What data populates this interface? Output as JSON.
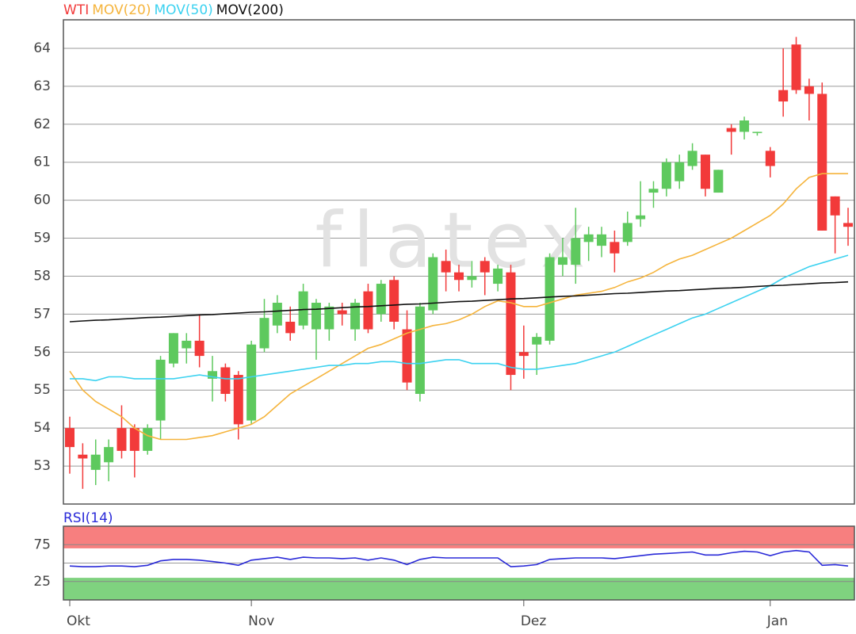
{
  "chart_data": [
    {
      "type": "candlestick",
      "watermark": "flatex",
      "categories": [
        "Okt",
        null,
        null,
        null,
        null,
        null,
        null,
        null,
        null,
        null,
        null,
        null,
        null,
        null,
        "Nov",
        null,
        null,
        null,
        null,
        null,
        null,
        null,
        null,
        null,
        null,
        null,
        null,
        null,
        null,
        null,
        null,
        null,
        null,
        null,
        null,
        "Dez",
        null,
        null,
        null,
        null,
        null,
        null,
        null,
        null,
        null,
        null,
        null,
        null,
        null,
        null,
        null,
        null,
        null,
        null,
        "Jan",
        null,
        null,
        null,
        null,
        null,
        null
      ],
      "ylim": [
        52,
        64.75
      ],
      "yticks": [
        53,
        54,
        55,
        56,
        57,
        58,
        59,
        60,
        61,
        62,
        63,
        64
      ],
      "grid": true,
      "series": [
        {
          "name": "WTI",
          "up_color": "#5ec95e",
          "down_color": "#f23a3a",
          "open": [
            54.0,
            53.3,
            52.9,
            53.1,
            54.0,
            54.0,
            53.4,
            54.2,
            55.7,
            56.1,
            56.3,
            55.3,
            55.6,
            55.4,
            54.2,
            56.1,
            56.7,
            56.8,
            56.7,
            56.6,
            56.6,
            57.1,
            56.6,
            57.6,
            57.0,
            57.9,
            56.6,
            54.9,
            57.1,
            58.4,
            58.1,
            57.9,
            58.4,
            57.8,
            58.1,
            56.0,
            56.2,
            56.3,
            58.3,
            58.3,
            58.9,
            58.8,
            58.9,
            58.9,
            59.5,
            60.2,
            60.3,
            60.5,
            60.9,
            61.2,
            60.2,
            61.9,
            61.8,
            61.8,
            61.3,
            62.9,
            64.1,
            63.0,
            62.8,
            60.1,
            59.4
          ],
          "high": [
            54.3,
            53.6,
            53.7,
            53.7,
            54.6,
            54.1,
            54.1,
            55.9,
            56.5,
            56.5,
            57.0,
            55.9,
            55.7,
            55.5,
            56.3,
            57.4,
            57.5,
            57.2,
            57.8,
            57.4,
            57.3,
            57.3,
            57.4,
            57.8,
            57.9,
            58.0,
            57.1,
            57.3,
            58.6,
            58.7,
            58.3,
            58.4,
            58.5,
            58.3,
            58.3,
            56.7,
            56.5,
            58.6,
            59.0,
            59.8,
            59.3,
            59.3,
            59.2,
            59.7,
            60.5,
            60.5,
            61.1,
            61.2,
            61.5,
            61.2,
            60.8,
            62.0,
            62.2,
            61.8,
            61.4,
            64.0,
            64.3,
            63.2,
            63.1,
            60.1,
            59.8
          ],
          "low": [
            52.8,
            52.4,
            52.5,
            52.6,
            53.2,
            52.7,
            53.3,
            53.7,
            55.6,
            55.7,
            55.6,
            54.7,
            54.7,
            53.7,
            54.1,
            56.0,
            56.5,
            56.3,
            56.6,
            55.8,
            56.3,
            56.7,
            56.3,
            56.5,
            56.8,
            56.6,
            55.0,
            54.7,
            57.0,
            57.6,
            57.6,
            57.7,
            57.5,
            57.6,
            55.0,
            55.3,
            55.4,
            56.2,
            58.0,
            57.8,
            58.4,
            58.5,
            58.1,
            58.8,
            59.3,
            59.8,
            60.1,
            60.3,
            60.8,
            60.1,
            60.2,
            61.2,
            61.6,
            61.7,
            60.6,
            62.2,
            62.8,
            62.1,
            59.2,
            58.6,
            58.8
          ],
          "close": [
            53.5,
            53.2,
            53.3,
            53.5,
            53.4,
            53.4,
            54.0,
            55.8,
            56.5,
            56.3,
            55.9,
            55.5,
            54.9,
            54.1,
            56.2,
            56.9,
            57.3,
            56.5,
            57.6,
            57.3,
            57.2,
            57.0,
            57.3,
            56.6,
            57.8,
            56.8,
            55.2,
            57.2,
            58.5,
            58.1,
            57.9,
            58.0,
            58.1,
            58.2,
            55.4,
            55.9,
            56.4,
            58.5,
            58.5,
            59.0,
            59.1,
            59.1,
            58.6,
            59.4,
            59.6,
            60.3,
            61.0,
            61.0,
            61.3,
            60.3,
            60.8,
            61.8,
            62.1,
            61.8,
            60.9,
            62.6,
            62.9,
            62.8,
            59.2,
            59.6,
            59.3
          ]
        },
        {
          "name": "MOV(20)",
          "color": "#f5b43c",
          "values": [
            55.5,
            55.0,
            54.7,
            54.5,
            54.3,
            54.0,
            53.8,
            53.7,
            53.7,
            53.7,
            53.75,
            53.8,
            53.9,
            54.0,
            54.1,
            54.3,
            54.6,
            54.9,
            55.1,
            55.3,
            55.5,
            55.7,
            55.9,
            56.1,
            56.2,
            56.35,
            56.5,
            56.6,
            56.7,
            56.75,
            56.85,
            57.0,
            57.2,
            57.35,
            57.3,
            57.2,
            57.2,
            57.3,
            57.4,
            57.5,
            57.55,
            57.6,
            57.7,
            57.85,
            57.95,
            58.1,
            58.3,
            58.45,
            58.55,
            58.7,
            58.85,
            59.0,
            59.2,
            59.4,
            59.6,
            59.9,
            60.3,
            60.6,
            60.7,
            60.7,
            60.7
          ]
        },
        {
          "name": "MOV(50)",
          "color": "#3cd2f0",
          "values": [
            55.3,
            55.3,
            55.25,
            55.35,
            55.35,
            55.3,
            55.3,
            55.3,
            55.3,
            55.35,
            55.4,
            55.35,
            55.3,
            55.3,
            55.35,
            55.4,
            55.45,
            55.5,
            55.55,
            55.6,
            55.65,
            55.65,
            55.7,
            55.7,
            55.75,
            55.75,
            55.7,
            55.7,
            55.75,
            55.8,
            55.8,
            55.7,
            55.7,
            55.7,
            55.6,
            55.55,
            55.55,
            55.6,
            55.65,
            55.7,
            55.8,
            55.9,
            56.0,
            56.15,
            56.3,
            56.45,
            56.6,
            56.75,
            56.9,
            57.0,
            57.15,
            57.3,
            57.45,
            57.6,
            57.75,
            57.95,
            58.1,
            58.25,
            58.35,
            58.45,
            58.55
          ]
        },
        {
          "name": "MOV(200)",
          "color": "#111111",
          "values": [
            56.8,
            56.82,
            56.84,
            56.85,
            56.87,
            56.89,
            56.91,
            56.92,
            56.94,
            56.96,
            56.98,
            56.99,
            57.01,
            57.03,
            57.05,
            57.06,
            57.08,
            57.1,
            57.12,
            57.13,
            57.15,
            57.17,
            57.19,
            57.2,
            57.22,
            57.24,
            57.26,
            57.27,
            57.29,
            57.31,
            57.33,
            57.34,
            57.36,
            57.38,
            57.4,
            57.41,
            57.43,
            57.45,
            57.47,
            57.48,
            57.5,
            57.52,
            57.54,
            57.55,
            57.57,
            57.59,
            57.61,
            57.62,
            57.64,
            57.66,
            57.68,
            57.69,
            57.71,
            57.73,
            57.75,
            57.76,
            57.78,
            57.8,
            57.82,
            57.83,
            57.85
          ]
        }
      ]
    },
    {
      "type": "line",
      "ylim": [
        0,
        100
      ],
      "yticks": [
        25,
        75
      ],
      "midline": 50,
      "bands": [
        {
          "from": 70,
          "to": 100,
          "color": "#f77f7f"
        },
        {
          "from": 0,
          "to": 30,
          "color": "#7fd27f"
        }
      ],
      "series": [
        {
          "name": "RSI(14)",
          "color": "#2a2ad8",
          "values": [
            46,
            45,
            45,
            46,
            46,
            45,
            47,
            53,
            55,
            55,
            54,
            52,
            50,
            47,
            54,
            56,
            58,
            55,
            58,
            57,
            57,
            56,
            57,
            54,
            57,
            54,
            48,
            55,
            58,
            57,
            57,
            57,
            57,
            57,
            45,
            46,
            48,
            55,
            56,
            57,
            57,
            57,
            56,
            58,
            60,
            62,
            63,
            64,
            65,
            61,
            61,
            64,
            66,
            65,
            60,
            65,
            67,
            65,
            47,
            48,
            46
          ]
        }
      ]
    }
  ]
}
